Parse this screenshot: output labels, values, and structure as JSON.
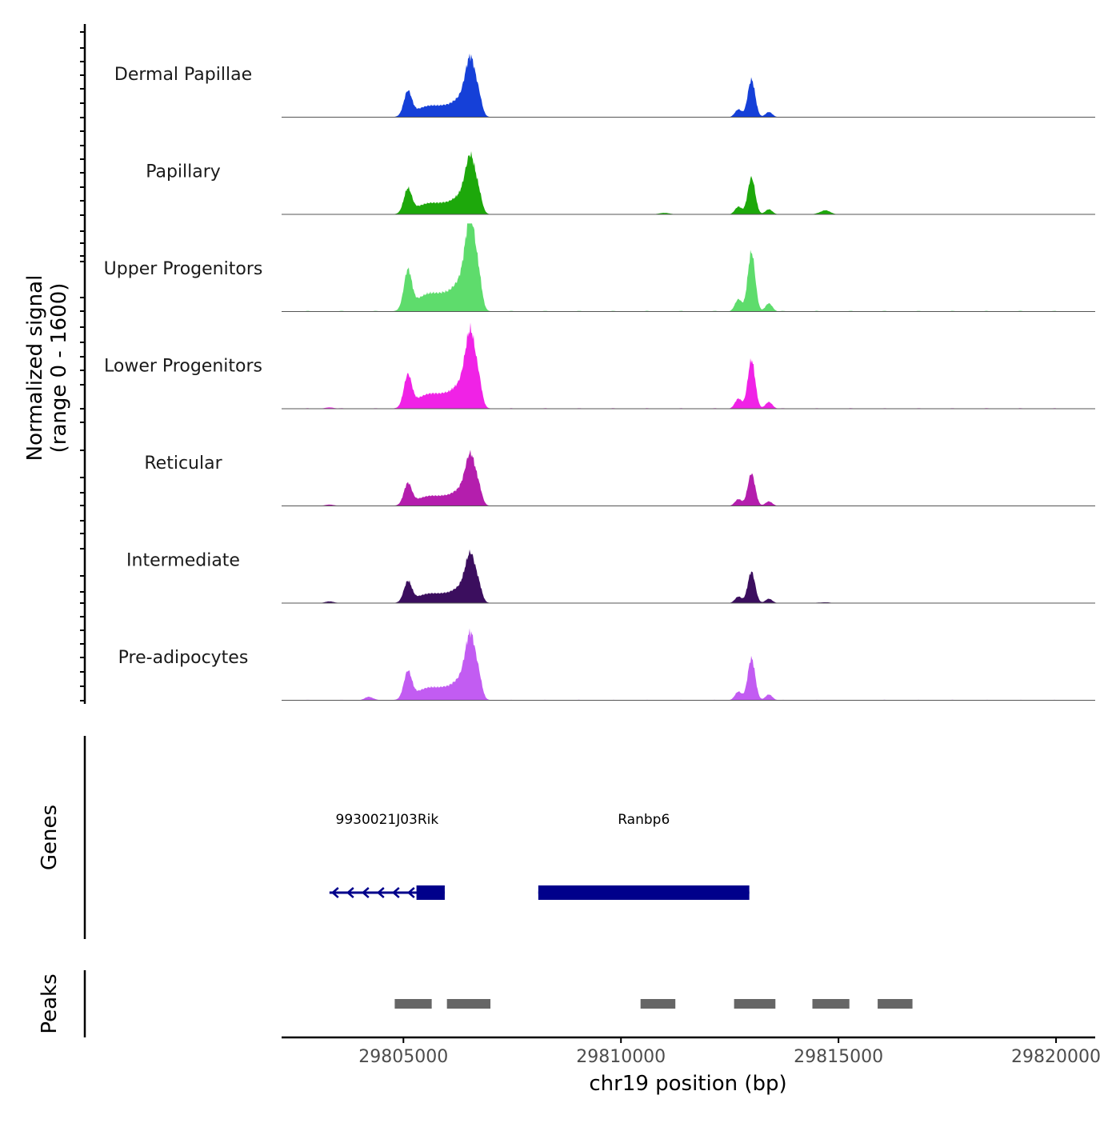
{
  "chart_data": {
    "type": "area",
    "title": "",
    "signal_panel": {
      "ylabel_line1": "Normalized signal",
      "ylabel_line2": "(range 0 - 1600)",
      "ylim": [
        0,
        1600
      ],
      "tracks": [
        {
          "name": "Dermal Papillae",
          "color": "#1540D8",
          "scale": 0.6,
          "extra": []
        },
        {
          "name": "Papillary",
          "color": "#1DA80B",
          "scale": 0.59,
          "extra": [
            [
              29811000,
              0.03,
              120
            ],
            [
              29814700,
              0.08,
              110
            ]
          ]
        },
        {
          "name": "Upper Progenitors",
          "color": "#5EDC6C",
          "scale": 0.95,
          "extra": []
        },
        {
          "name": "Lower Progenitors",
          "color": "#F022E6",
          "scale": 0.78,
          "extra": [
            [
              29803300,
              0.02,
              100
            ]
          ]
        },
        {
          "name": "Reticular",
          "color": "#B41EAD",
          "scale": 0.52,
          "extra": [
            [
              29803300,
              0.03,
              100
            ]
          ]
        },
        {
          "name": "Intermediate",
          "color": "#3B0E5E",
          "scale": 0.5,
          "extra": [
            [
              29803300,
              0.04,
              100
            ],
            [
              29814700,
              0.02,
              110
            ]
          ]
        },
        {
          "name": "Pre-adipocytes",
          "color": "#C25CF2",
          "scale": 0.67,
          "extra": [
            [
              29804200,
              0.06,
              90
            ]
          ]
        }
      ],
      "profile_peaks": [
        {
          "center": 29805100,
          "height": 0.45,
          "width": 90
        },
        {
          "center": 29805500,
          "height": 0.15,
          "width": 280
        },
        {
          "center": 29806000,
          "height": 0.16,
          "width": 350
        },
        {
          "center": 29806350,
          "height": 0.25,
          "width": 200
        },
        {
          "center": 29806550,
          "height": 0.97,
          "width": 120
        },
        {
          "center": 29806750,
          "height": 0.2,
          "width": 70
        },
        {
          "center": 29812700,
          "height": 0.15,
          "width": 80
        },
        {
          "center": 29813000,
          "height": 0.72,
          "width": 85
        },
        {
          "center": 29813400,
          "height": 0.1,
          "width": 80
        }
      ]
    },
    "genes_panel": {
      "label": "Genes",
      "color": "#00008B",
      "genes": [
        {
          "name": "9930021J03Rik",
          "start": 29803300,
          "end": 29805950,
          "strand": "-",
          "exon_start": 29805300,
          "exon_end": 29805950
        },
        {
          "name": "Ranbp6",
          "start": 29808100,
          "end": 29812950,
          "strand": "+",
          "exon_start": 29808100,
          "exon_end": 29812950
        }
      ]
    },
    "peaks_panel": {
      "label": "Peaks",
      "color": "#666666",
      "peaks": [
        [
          29804800,
          29805650
        ],
        [
          29806000,
          29807000
        ],
        [
          29810450,
          29811250
        ],
        [
          29812600,
          29813550
        ],
        [
          29814400,
          29815250
        ],
        [
          29815900,
          29816700
        ]
      ]
    },
    "x_axis": {
      "xlabel": "chr19 position (bp)",
      "xlim": [
        29802200,
        29820900
      ],
      "ticks": [
        29805000,
        29810000,
        29815000,
        29820000
      ],
      "tick_labels": [
        "29805000",
        "29810000",
        "29815000",
        "29820000"
      ]
    }
  }
}
